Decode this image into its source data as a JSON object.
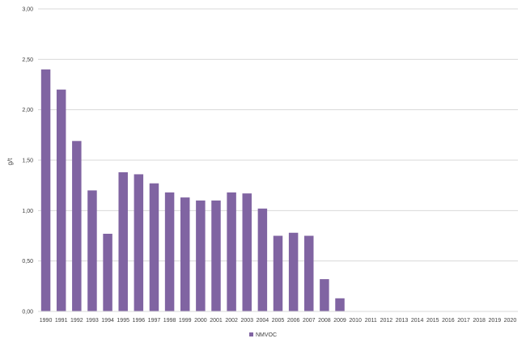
{
  "chart_data": {
    "type": "bar",
    "ylabel": "g/t",
    "ylim": [
      0,
      3.0
    ],
    "yticks": [
      "0,00",
      "0,50",
      "1,00",
      "1,50",
      "2,00",
      "2,50",
      "3,00"
    ],
    "grid": true,
    "legend_position": "bottom",
    "bar_color": "#8064a2",
    "categories": [
      "1990",
      "1991",
      "1992",
      "1993",
      "1994",
      "1995",
      "1996",
      "1997",
      "1998",
      "1999",
      "2000",
      "2001",
      "2002",
      "2003",
      "2004",
      "2005",
      "2006",
      "2007",
      "2008",
      "2009",
      "2010",
      "2011",
      "2012",
      "2013",
      "2014",
      "2015",
      "2016",
      "2017",
      "2018",
      "2019",
      "2020"
    ],
    "series": [
      {
        "name": "NMVOC",
        "values": [
          2.4,
          2.2,
          1.69,
          1.2,
          0.77,
          1.38,
          1.36,
          1.27,
          1.18,
          1.13,
          1.1,
          1.1,
          1.18,
          1.17,
          1.02,
          0.75,
          0.78,
          0.75,
          0.32,
          0.13,
          null,
          null,
          null,
          null,
          null,
          null,
          null,
          null,
          null,
          null,
          null
        ]
      }
    ]
  }
}
